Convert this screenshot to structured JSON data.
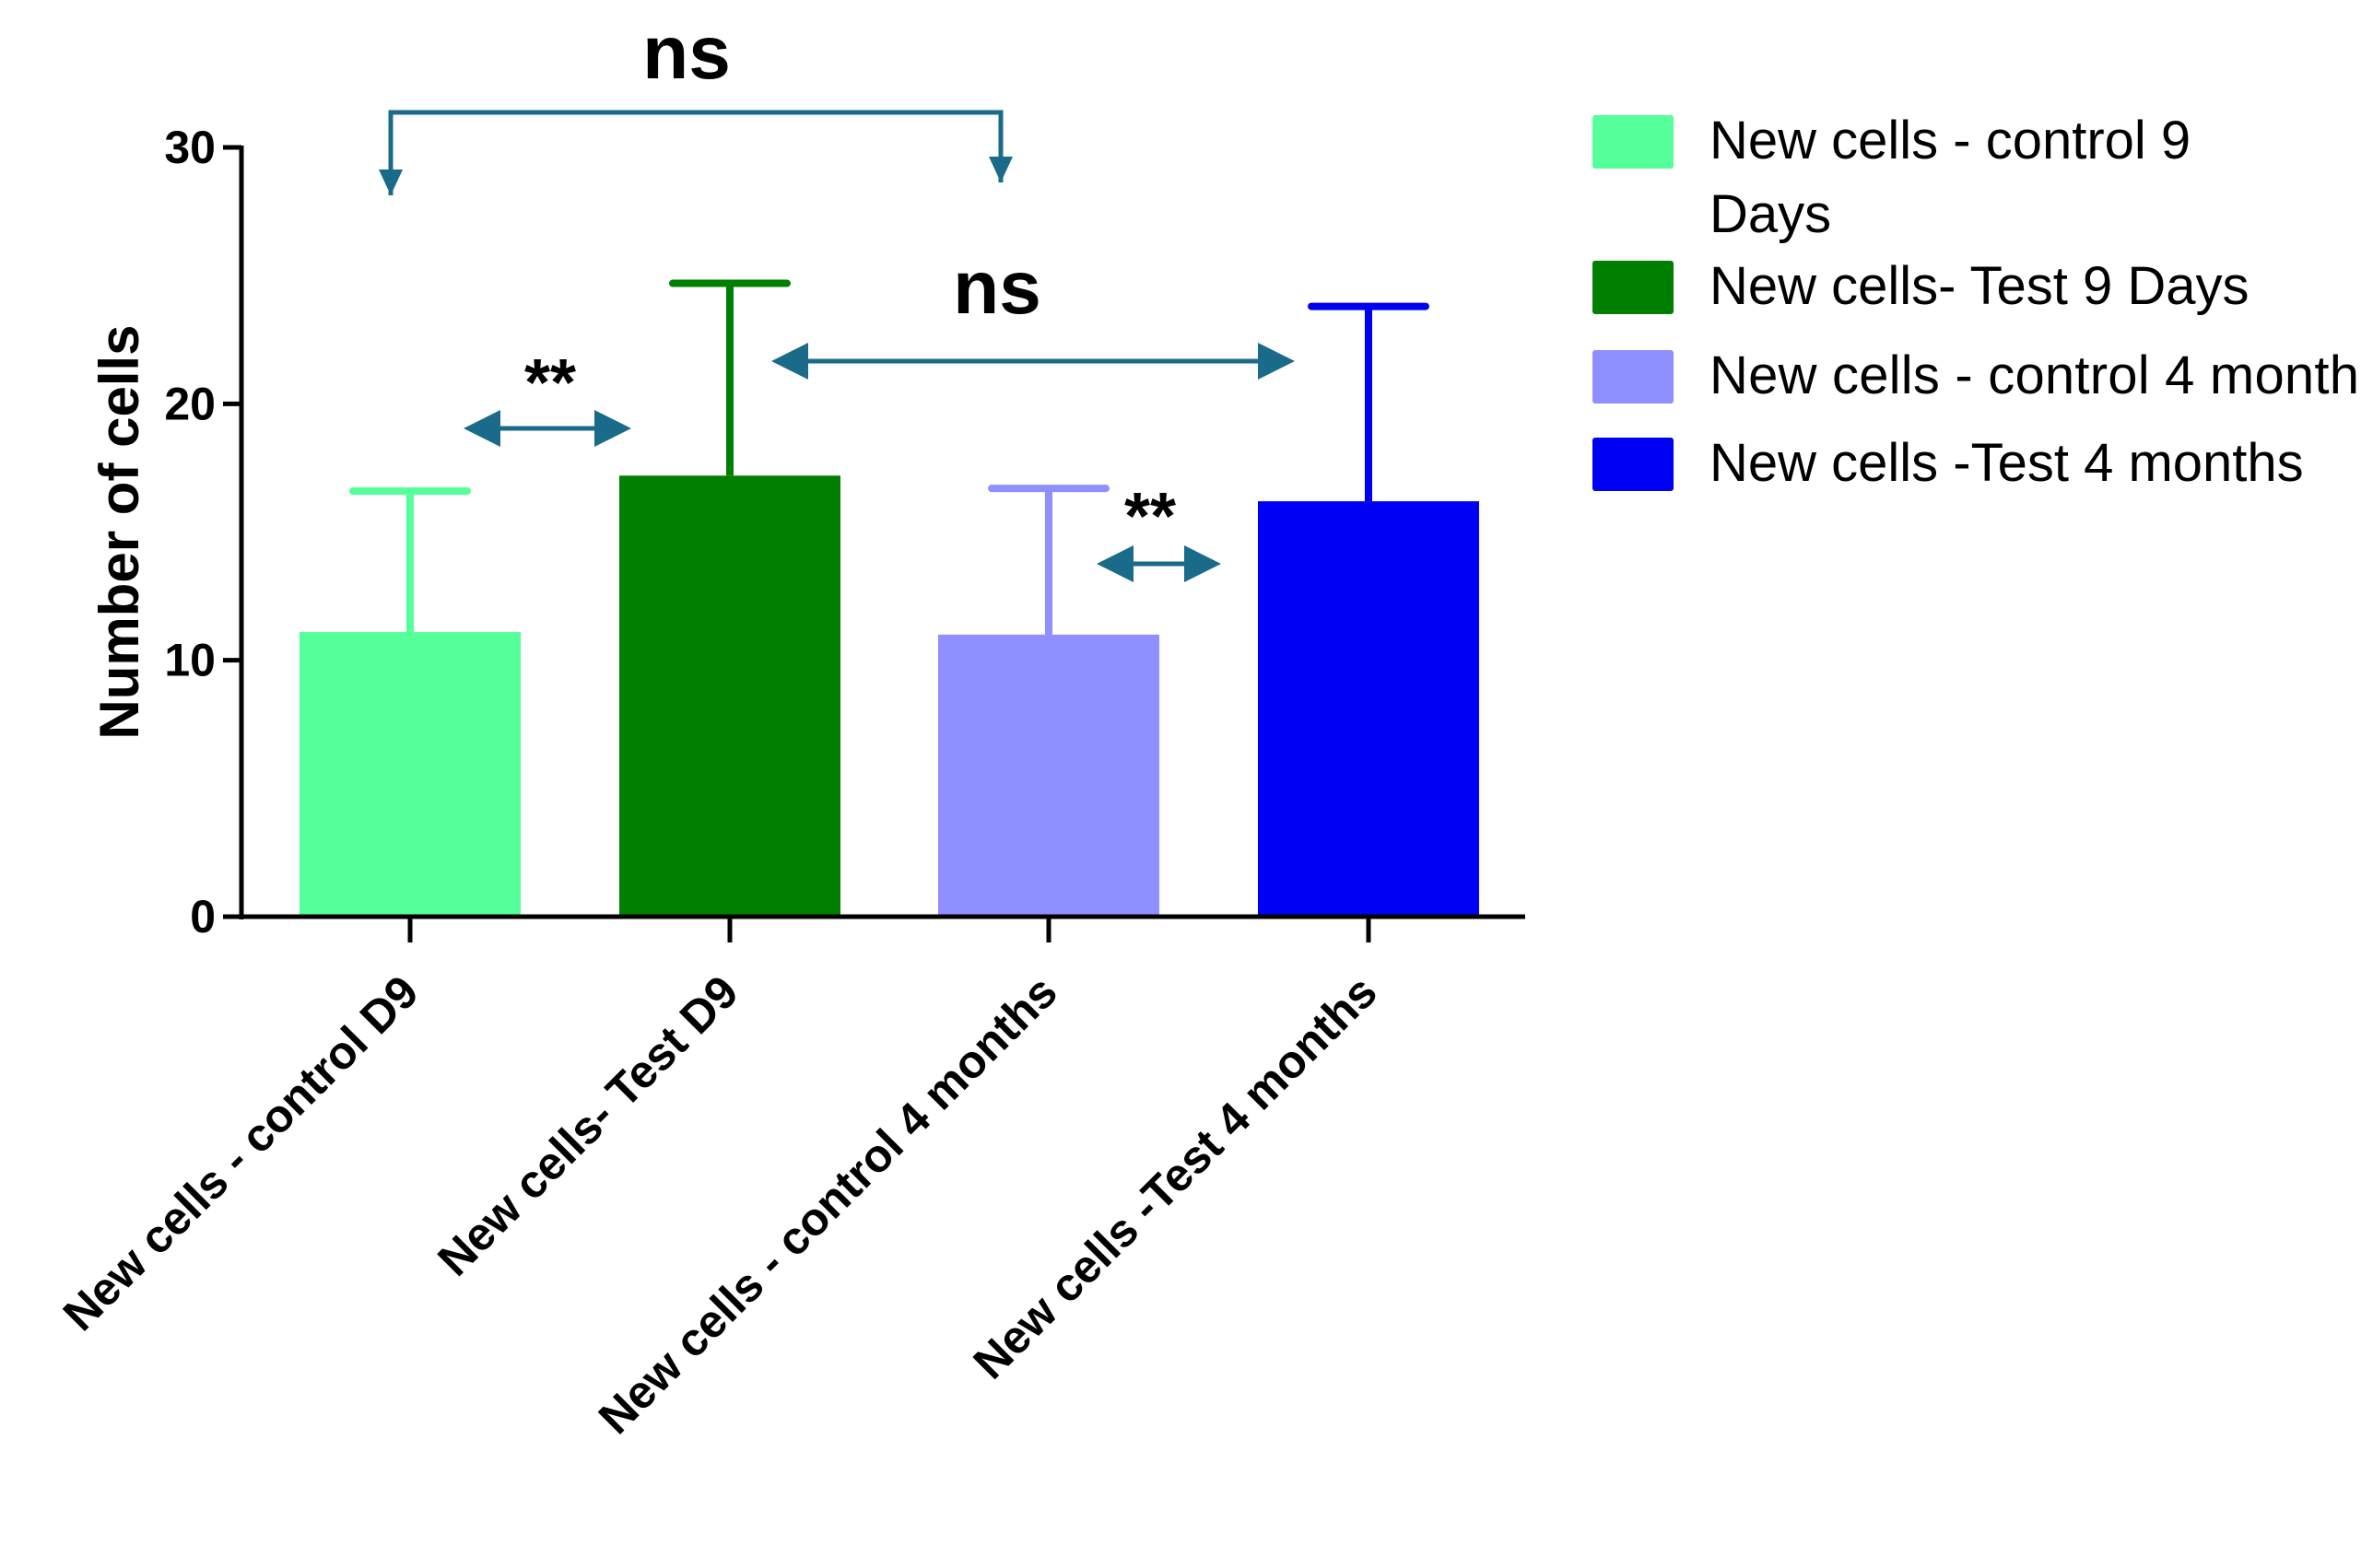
{
  "chart_data": {
    "type": "bar",
    "title": "",
    "xlabel": "",
    "ylabel": "Number of cells",
    "ylim": [
      0,
      30
    ],
    "yticks": [
      0,
      10,
      20,
      30
    ],
    "categories": [
      "New cells - control D9",
      "New cells- Test D9",
      "New cells - control 4 months",
      "New cells -Test 4 months"
    ],
    "values": [
      11.1,
      17.2,
      11.0,
      16.2
    ],
    "error_upper": [
      16.6,
      24.7,
      16.7,
      23.8
    ],
    "colors": [
      "#55FF99",
      "#007F00",
      "#8F8FFF",
      "#0000F5"
    ],
    "grid": false,
    "legend_position": "right",
    "legend": [
      {
        "label_line1": "New cells - control 9",
        "label_line2": "Days",
        "color": "#55FF99"
      },
      {
        "label_line1": "New cells- Test 9 Days",
        "label_line2": "",
        "color": "#007F00"
      },
      {
        "label_line1": "New cells - control 4 month",
        "label_line2": "",
        "color": "#8F8FFF"
      },
      {
        "label_line1": "New cells -Test 4 months",
        "label_line2": "",
        "color": "#0000F5"
      }
    ],
    "annotations": [
      {
        "label": "ns",
        "between": [
          0,
          2
        ],
        "style": "bracket"
      },
      {
        "label": "ns",
        "between": [
          1,
          3
        ],
        "style": "double-arrow"
      },
      {
        "label": "**",
        "between": [
          0,
          1
        ],
        "style": "double-arrow"
      },
      {
        "label": "**",
        "between": [
          2,
          3
        ],
        "style": "double-arrow"
      }
    ],
    "annotation_color": "#1A6B8A"
  }
}
